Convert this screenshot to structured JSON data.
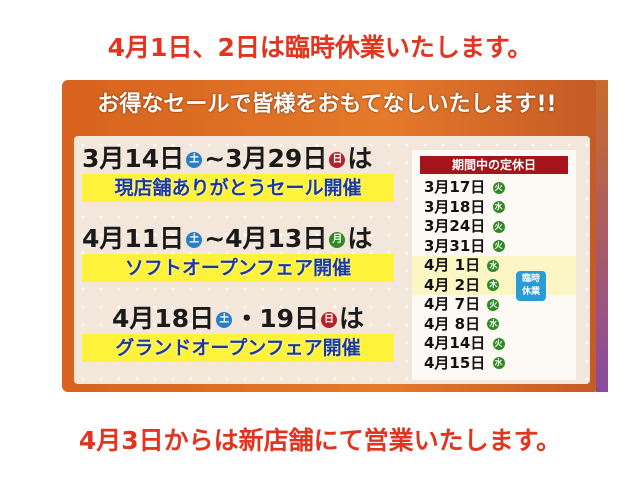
{
  "top_notice": "4月1日、2日は臨時休業いたします。",
  "bottom_notice": "4月3日からは新店舗にて営業いたします。",
  "poster": {
    "headline": "お得なセールで皆様をおもてなしいたします!!",
    "events": [
      {
        "date_text": "3月14日",
        "dow1": "土",
        "sep": "~",
        "date_text2": "3月29日",
        "dow2": "日",
        "suffix": "は",
        "event": "現店舗ありがとうセール開催"
      },
      {
        "date_text": "4月11日",
        "dow1": "土",
        "sep": "~",
        "date_text2": "4月13日",
        "dow2": "月",
        "suffix": "は",
        "event": "ソフトオープンフェア開催"
      },
      {
        "date_text": "4月18日",
        "dow1": "土",
        "sep": "・",
        "date_text2": "19日",
        "dow2": "日",
        "suffix": "は",
        "event": "グランドオープンフェア開催"
      }
    ],
    "closed_days": {
      "title": "期間中の定休日",
      "items": [
        {
          "date": "3月17日",
          "dow": "火"
        },
        {
          "date": "3月18日",
          "dow": "水"
        },
        {
          "date": "3月24日",
          "dow": "火"
        },
        {
          "date": "3月31日",
          "dow": "火"
        },
        {
          "date": "4月 1日",
          "dow": "水"
        },
        {
          "date": "4月 2日",
          "dow": "木"
        },
        {
          "date": "4月 7日",
          "dow": "火"
        },
        {
          "date": "4月 8日",
          "dow": "水"
        },
        {
          "date": "4月14日",
          "dow": "火"
        },
        {
          "date": "4月15日",
          "dow": "水"
        }
      ],
      "temporary_badge": "臨時休業"
    }
  },
  "colors": {
    "notice_red": "#e2351f",
    "header_orange": "#d8621e",
    "band_yellow": "#fff23a",
    "event_blue": "#1d3a9a",
    "sat_blue": "#2a7fc4",
    "sun_red": "#b2232a",
    "mon_green": "#2e8a22",
    "closed_header": "#a5141b",
    "badge_blue": "#2a9bd6"
  }
}
